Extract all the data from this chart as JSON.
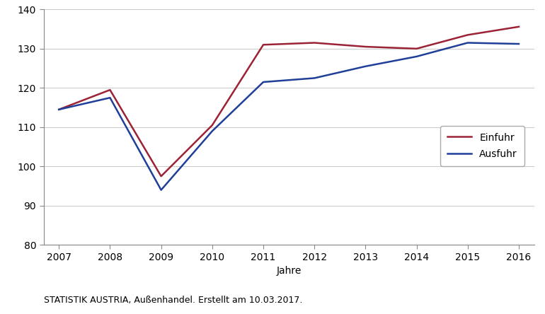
{
  "years": [
    2007,
    2008,
    2009,
    2010,
    2011,
    2012,
    2013,
    2014,
    2015,
    2016
  ],
  "einfuhr": [
    114.5,
    119.5,
    97.5,
    110.5,
    131.0,
    131.5,
    130.5,
    130.0,
    133.5,
    135.59
  ],
  "ausfuhr": [
    114.5,
    117.5,
    94.0,
    109.0,
    121.5,
    122.5,
    125.5,
    128.0,
    131.5,
    131.22
  ],
  "einfuhr_color": "#9B2335",
  "ausfuhr_color": "#1F3F99",
  "ylim": [
    80,
    140
  ],
  "yticks": [
    80,
    90,
    100,
    110,
    120,
    130,
    140
  ],
  "xlabel": "Jahre",
  "legend_einfuhr": "Einfuhr",
  "legend_ausfuhr": "Ausfuhr",
  "footer": "STATISTIK AUSTRIA, Außenhandel. Erstellt am 10.03.2017.",
  "line_width": 1.8,
  "grid_color": "#cccccc",
  "background_color": "#ffffff",
  "spine_color": "#888888",
  "tick_label_fontsize": 10,
  "xlabel_fontsize": 10,
  "legend_fontsize": 10,
  "footer_fontsize": 9
}
